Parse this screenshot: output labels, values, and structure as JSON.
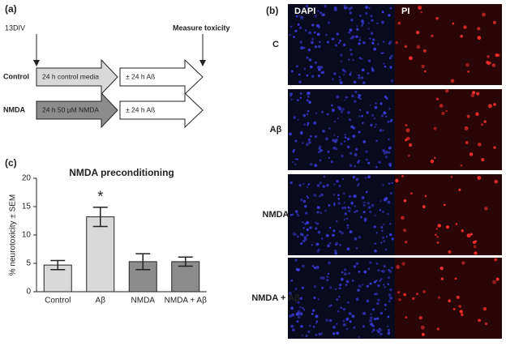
{
  "panel_a": {
    "label": "(a)",
    "start": "13DIV",
    "end": "Measure toxicity",
    "rows": [
      {
        "name": "Control",
        "step1": "24 h control media",
        "step2": "± 24 h Aß"
      },
      {
        "name": "NMDA",
        "step1": "24 h 50 µM NMDA",
        "step2": "± 24 h Aß"
      }
    ]
  },
  "chart_data": {
    "type": "bar",
    "label": "(c)",
    "title": "NMDA preconditioning",
    "y_label": "% neurotoxicity ± SEM",
    "categories": [
      "Control",
      "Aβ",
      "NMDA",
      "NMDA + Aβ"
    ],
    "values": [
      4.7,
      13.2,
      5.3,
      5.3
    ],
    "errors": [
      0.8,
      1.7,
      1.4,
      0.8
    ],
    "colors": [
      "#d9d9d9",
      "#d9d9d9",
      "#8c8c8c",
      "#8c8c8c"
    ],
    "annotation": "*",
    "ylim": [
      0,
      20
    ],
    "yticks": [
      0,
      5,
      10,
      15,
      20
    ]
  },
  "panel_b": {
    "label": "(b)",
    "columns": [
      "DAPI",
      "PI"
    ],
    "rows": [
      "C",
      "Aβ",
      "NMDA",
      "NMDA + Aβ"
    ]
  }
}
